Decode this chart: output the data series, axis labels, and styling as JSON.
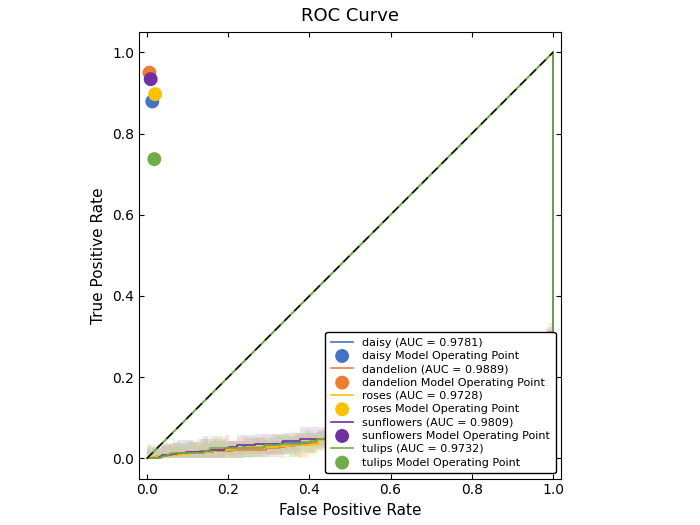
{
  "title": "ROC Curve",
  "xlabel": "False Positive Rate",
  "ylabel": "True Positive Rate",
  "classes": [
    "daisy",
    "dandelion",
    "roses",
    "sunflowers",
    "tulips"
  ],
  "aucs": [
    0.9781,
    0.9889,
    0.9728,
    0.9809,
    0.9732
  ],
  "line_colors": [
    "#4472c4",
    "#ed7d31",
    "#ffc000",
    "#7030a0",
    "#70ad47"
  ],
  "fill_colors": [
    "#adb9ca",
    "#f4b183",
    "#ffe699",
    "#c09fce",
    "#a9d18e"
  ],
  "op_points": [
    [
      0.013,
      0.879
    ],
    [
      0.006,
      0.95
    ],
    [
      0.02,
      0.897
    ],
    [
      0.009,
      0.934
    ],
    [
      0.018,
      0.737
    ]
  ],
  "xlim": [
    -0.02,
    1.02
  ],
  "ylim": [
    -0.05,
    1.05
  ],
  "seed": 0
}
